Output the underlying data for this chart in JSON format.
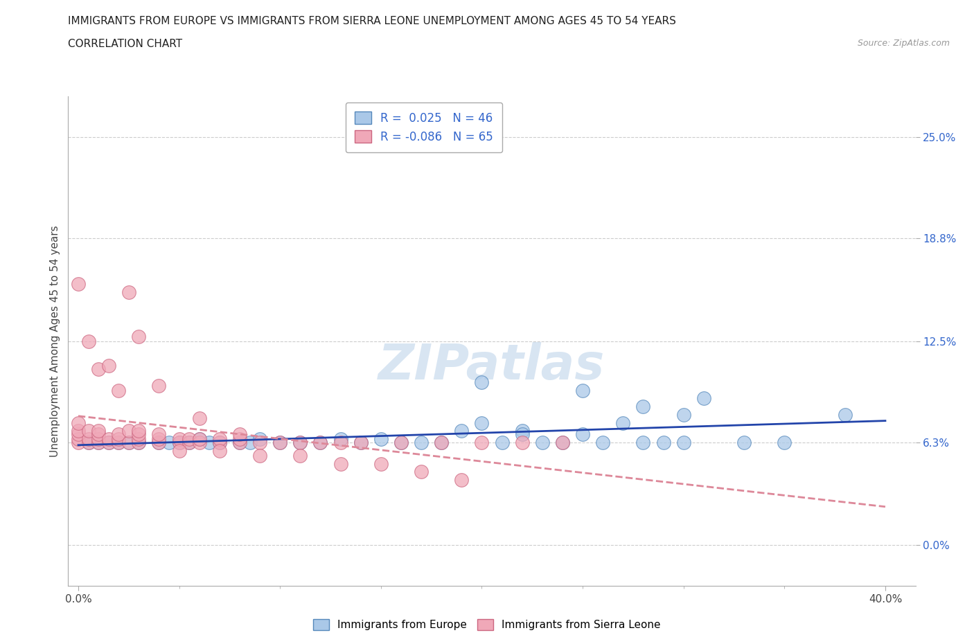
{
  "title_line1": "IMMIGRANTS FROM EUROPE VS IMMIGRANTS FROM SIERRA LEONE UNEMPLOYMENT AMONG AGES 45 TO 54 YEARS",
  "title_line2": "CORRELATION CHART",
  "source_text": "Source: ZipAtlas.com",
  "ylabel": "Unemployment Among Ages 45 to 54 years",
  "xlim": [
    -0.005,
    0.415
  ],
  "ylim": [
    -0.025,
    0.275
  ],
  "xtick_positions": [
    0.0,
    0.4
  ],
  "xtick_labels": [
    "0.0%",
    "40.0%"
  ],
  "xtick_minor": [
    0.05,
    0.1,
    0.15,
    0.2,
    0.25,
    0.3,
    0.35
  ],
  "ytick_values": [
    0.0,
    0.063,
    0.125,
    0.188,
    0.25
  ],
  "ytick_labels": [
    "0.0%",
    "6.3%",
    "12.5%",
    "18.8%",
    "25.0%"
  ],
  "grid_color": "#cccccc",
  "europe_color": "#aac8e8",
  "europe_edge": "#5588bb",
  "sl_color": "#f0a8b8",
  "sl_edge": "#cc6680",
  "europe_R": 0.025,
  "europe_N": 46,
  "sl_R": -0.086,
  "sl_N": 65,
  "europe_line_color": "#2244aa",
  "sl_line_color": "#dd8899",
  "europe_scatter_x": [
    0.005,
    0.01,
    0.015,
    0.02,
    0.025,
    0.03,
    0.04,
    0.045,
    0.05,
    0.055,
    0.06,
    0.065,
    0.07,
    0.08,
    0.085,
    0.09,
    0.1,
    0.11,
    0.12,
    0.13,
    0.14,
    0.15,
    0.16,
    0.17,
    0.18,
    0.19,
    0.2,
    0.21,
    0.22,
    0.23,
    0.24,
    0.25,
    0.26,
    0.27,
    0.28,
    0.29,
    0.3,
    0.31,
    0.33,
    0.35,
    0.2,
    0.25,
    0.28,
    0.38,
    0.3,
    0.22
  ],
  "europe_scatter_y": [
    0.063,
    0.063,
    0.063,
    0.063,
    0.063,
    0.063,
    0.063,
    0.063,
    0.063,
    0.063,
    0.065,
    0.063,
    0.063,
    0.063,
    0.063,
    0.065,
    0.063,
    0.063,
    0.063,
    0.065,
    0.063,
    0.065,
    0.063,
    0.063,
    0.063,
    0.07,
    0.075,
    0.063,
    0.07,
    0.063,
    0.063,
    0.068,
    0.063,
    0.075,
    0.063,
    0.063,
    0.08,
    0.09,
    0.063,
    0.063,
    0.1,
    0.095,
    0.085,
    0.08,
    0.063,
    0.068
  ],
  "sl_scatter_x": [
    0.0,
    0.0,
    0.0,
    0.0,
    0.0,
    0.005,
    0.005,
    0.005,
    0.01,
    0.01,
    0.01,
    0.01,
    0.015,
    0.015,
    0.02,
    0.02,
    0.02,
    0.025,
    0.025,
    0.03,
    0.03,
    0.03,
    0.03,
    0.04,
    0.04,
    0.04,
    0.05,
    0.05,
    0.055,
    0.055,
    0.06,
    0.06,
    0.07,
    0.07,
    0.08,
    0.08,
    0.09,
    0.1,
    0.11,
    0.12,
    0.13,
    0.14,
    0.16,
    0.18,
    0.2,
    0.22,
    0.24,
    0.05,
    0.07,
    0.09,
    0.11,
    0.13,
    0.15,
    0.17,
    0.19,
    0.0,
    0.005,
    0.01,
    0.015,
    0.02,
    0.025,
    0.03,
    0.04,
    0.06,
    0.08
  ],
  "sl_scatter_y": [
    0.063,
    0.065,
    0.068,
    0.07,
    0.075,
    0.063,
    0.065,
    0.07,
    0.063,
    0.065,
    0.068,
    0.07,
    0.063,
    0.065,
    0.063,
    0.065,
    0.068,
    0.063,
    0.07,
    0.063,
    0.065,
    0.068,
    0.07,
    0.063,
    0.065,
    0.068,
    0.063,
    0.065,
    0.063,
    0.065,
    0.063,
    0.065,
    0.063,
    0.065,
    0.063,
    0.065,
    0.063,
    0.063,
    0.063,
    0.063,
    0.063,
    0.063,
    0.063,
    0.063,
    0.063,
    0.063,
    0.063,
    0.058,
    0.058,
    0.055,
    0.055,
    0.05,
    0.05,
    0.045,
    0.04,
    0.16,
    0.125,
    0.108,
    0.11,
    0.095,
    0.155,
    0.128,
    0.098,
    0.078,
    0.068
  ]
}
